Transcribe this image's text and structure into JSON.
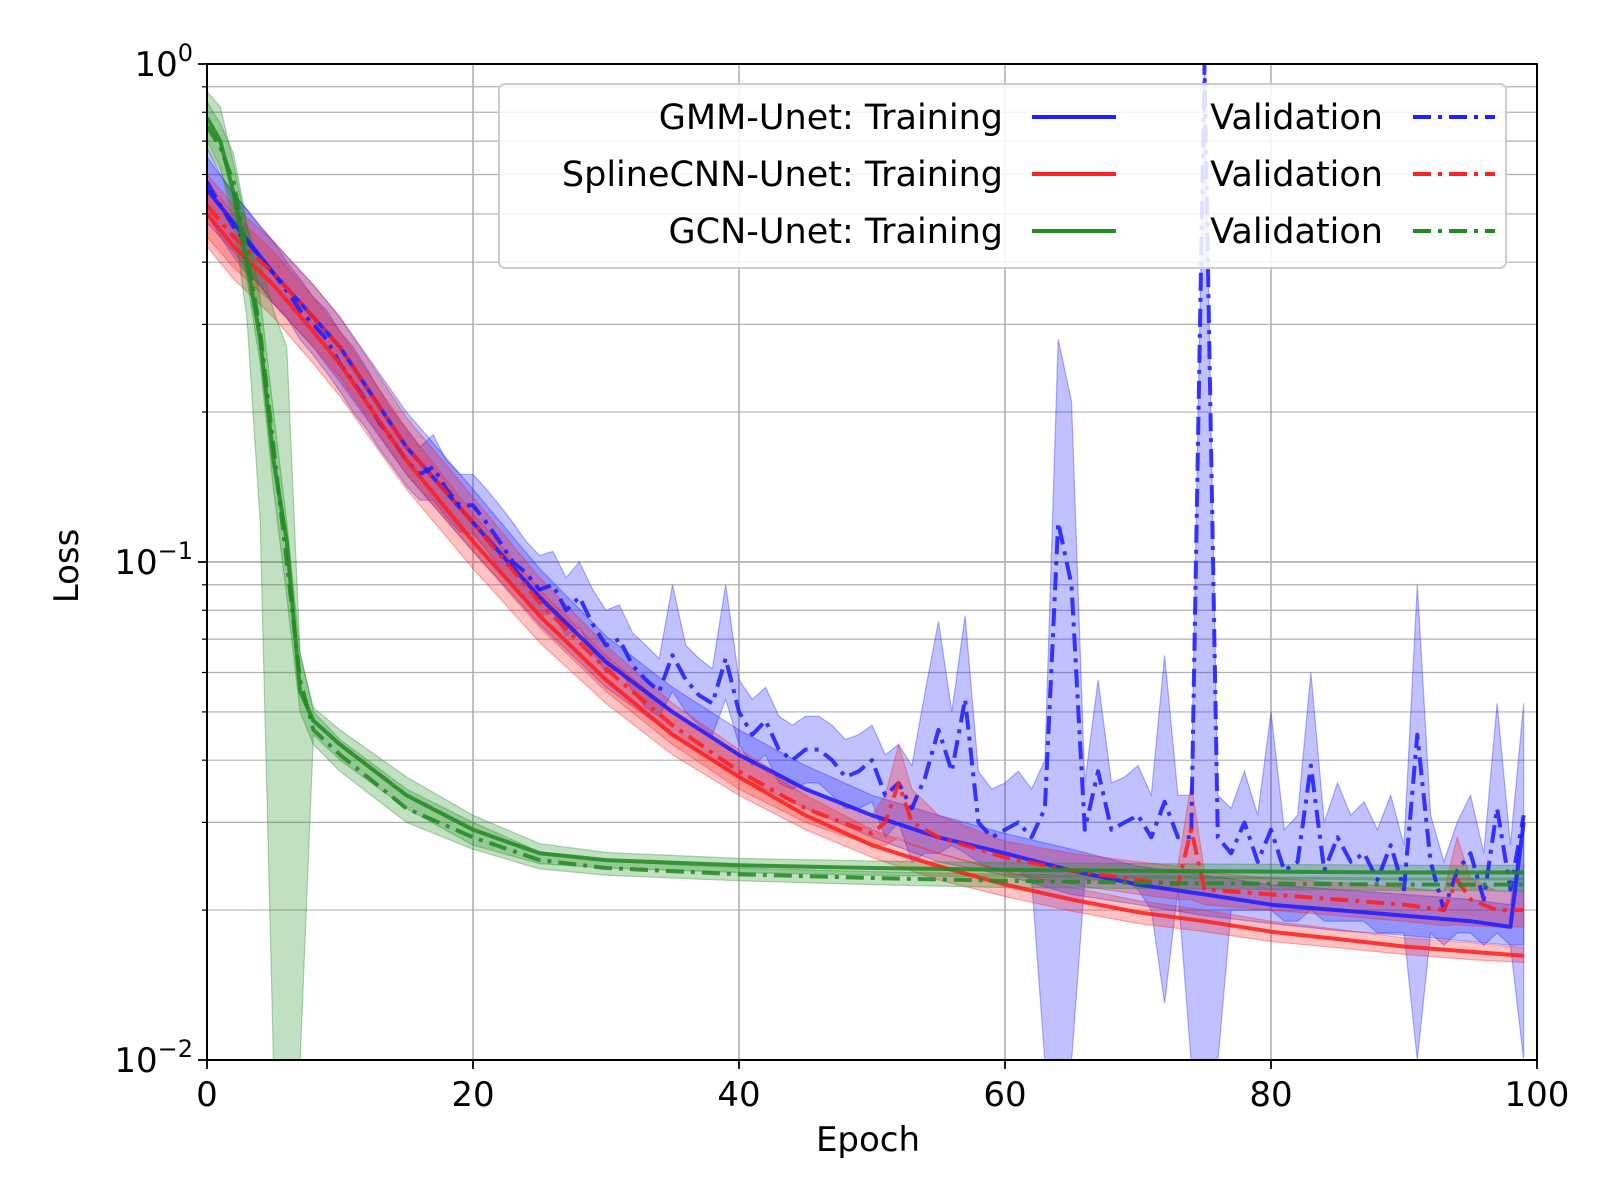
{
  "chart_data": {
    "type": "line",
    "xlabel": "Epoch",
    "ylabel": "Loss",
    "xlim": [
      0,
      100
    ],
    "ylim": [
      0.01,
      1
    ],
    "yscale": "log",
    "grid": true,
    "legend_placement": "top-right",
    "x_ticks": [
      {
        "value": 0,
        "label": "0"
      },
      {
        "value": 20,
        "label": "20"
      },
      {
        "value": 40,
        "label": "40"
      },
      {
        "value": 60,
        "label": "60"
      },
      {
        "value": 80,
        "label": "80"
      },
      {
        "value": 100,
        "label": "100"
      }
    ],
    "y_ticks": [
      {
        "value": 1,
        "base": "10",
        "exp": "0"
      },
      {
        "value": 0.1,
        "base": "10",
        "exp": "−1"
      },
      {
        "value": 0.01,
        "base": "10",
        "exp": "−2"
      }
    ],
    "legend": {
      "rows": [
        {
          "training_label": "GMM-Unet: Training",
          "validation_label": "Validation",
          "color": "#1f1fff"
        },
        {
          "training_label": "SplineCNN-Unet: Training",
          "validation_label": "Validation",
          "color": "#ff2020"
        },
        {
          "training_label": "GCN-Unet: Training",
          "validation_label": "Validation",
          "color": "#228b22"
        }
      ]
    },
    "series": [
      {
        "key": "gmm_train",
        "color": "#1f1fff",
        "style": "solid",
        "x": [
          0,
          2,
          5,
          8,
          10,
          15,
          20,
          25,
          30,
          35,
          40,
          45,
          50,
          55,
          60,
          65,
          70,
          75,
          80,
          85,
          90,
          95,
          98,
          99
        ],
        "y": [
          0.56,
          0.48,
          0.38,
          0.31,
          0.27,
          0.17,
          0.12,
          0.085,
          0.063,
          0.05,
          0.041,
          0.035,
          0.031,
          0.028,
          0.026,
          0.024,
          0.0225,
          0.0215,
          0.0205,
          0.02,
          0.0195,
          0.019,
          0.0185,
          0.03
        ],
        "band_lo": [
          0.48,
          0.42,
          0.33,
          0.27,
          0.23,
          0.15,
          0.105,
          0.075,
          0.056,
          0.045,
          0.037,
          0.032,
          0.028,
          0.025,
          0.0235,
          0.0215,
          0.0205,
          0.0195,
          0.0188,
          0.0182,
          0.0178,
          0.0173,
          0.017,
          0.017
        ],
        "band_hi": [
          0.65,
          0.55,
          0.44,
          0.36,
          0.31,
          0.2,
          0.14,
          0.097,
          0.071,
          0.056,
          0.046,
          0.039,
          0.034,
          0.031,
          0.0285,
          0.0265,
          0.0245,
          0.0235,
          0.0225,
          0.022,
          0.0215,
          0.021,
          0.0205,
          0.031
        ]
      },
      {
        "key": "gmm_val",
        "color": "#1f1fff",
        "style": "dashdot",
        "x": [
          0,
          1,
          2,
          3,
          4,
          5,
          6,
          7,
          8,
          9,
          10,
          11,
          12,
          13,
          14,
          15,
          16,
          17,
          18,
          19,
          20,
          21,
          22,
          23,
          24,
          25,
          26,
          27,
          28,
          29,
          30,
          31,
          32,
          33,
          34,
          35,
          36,
          37,
          38,
          39,
          40,
          41,
          42,
          43,
          44,
          45,
          46,
          47,
          48,
          49,
          50,
          51,
          52,
          53,
          54,
          55,
          56,
          57,
          58,
          59,
          60,
          61,
          62,
          63,
          64,
          65,
          66,
          67,
          68,
          69,
          70,
          71,
          72,
          73,
          74,
          75,
          76,
          77,
          78,
          79,
          80,
          81,
          82,
          83,
          84,
          85,
          86,
          87,
          88,
          89,
          90,
          91,
          92,
          93,
          94,
          95,
          96,
          97,
          98,
          99
        ],
        "y": [
          0.58,
          0.52,
          0.47,
          0.44,
          0.41,
          0.38,
          0.35,
          0.32,
          0.3,
          0.28,
          0.25,
          0.23,
          0.21,
          0.19,
          0.175,
          0.16,
          0.15,
          0.155,
          0.14,
          0.13,
          0.13,
          0.12,
          0.11,
          0.1,
          0.095,
          0.088,
          0.09,
          0.08,
          0.085,
          0.075,
          0.068,
          0.07,
          0.062,
          0.058,
          0.055,
          0.065,
          0.058,
          0.054,
          0.052,
          0.064,
          0.05,
          0.045,
          0.048,
          0.042,
          0.04,
          0.042,
          0.042,
          0.04,
          0.037,
          0.038,
          0.04,
          0.034,
          0.036,
          0.032,
          0.037,
          0.046,
          0.038,
          0.053,
          0.03,
          0.028,
          0.029,
          0.03,
          0.028,
          0.032,
          0.12,
          0.09,
          0.029,
          0.038,
          0.029,
          0.03,
          0.031,
          0.028,
          0.033,
          0.028,
          0.028,
          1.0,
          0.028,
          0.026,
          0.03,
          0.025,
          0.029,
          0.024,
          0.025,
          0.039,
          0.024,
          0.028,
          0.025,
          0.026,
          0.023,
          0.027,
          0.022,
          0.045,
          0.025,
          0.02,
          0.024,
          0.026,
          0.021,
          0.032,
          0.022,
          0.031
        ],
        "band_lo": [
          0.5,
          0.45,
          0.41,
          0.38,
          0.36,
          0.33,
          0.31,
          0.28,
          0.26,
          0.24,
          0.22,
          0.2,
          0.185,
          0.168,
          0.155,
          0.142,
          0.133,
          0.133,
          0.123,
          0.115,
          0.114,
          0.106,
          0.097,
          0.089,
          0.084,
          0.078,
          0.079,
          0.071,
          0.074,
          0.066,
          0.06,
          0.061,
          0.055,
          0.051,
          0.049,
          0.055,
          0.05,
          0.047,
          0.045,
          0.053,
          0.043,
          0.039,
          0.041,
          0.036,
          0.035,
          0.036,
          0.036,
          0.034,
          0.032,
          0.032,
          0.033,
          0.028,
          0.03,
          0.025,
          0.026,
          0.026,
          0.027,
          0.026,
          0.025,
          0.024,
          0.024,
          0.024,
          0.023,
          0.005,
          0.005,
          0.005,
          0.023,
          0.023,
          0.023,
          0.023,
          0.022,
          0.02,
          0.013,
          0.022,
          0.005,
          0.005,
          0.005,
          0.02,
          0.02,
          0.02,
          0.02,
          0.019,
          0.019,
          0.02,
          0.019,
          0.019,
          0.019,
          0.019,
          0.018,
          0.018,
          0.018,
          0.01,
          0.018,
          0.017,
          0.018,
          0.018,
          0.017,
          0.018,
          0.017,
          0.01
        ],
        "band_hi": [
          0.68,
          0.6,
          0.55,
          0.51,
          0.47,
          0.44,
          0.4,
          0.37,
          0.34,
          0.32,
          0.29,
          0.27,
          0.245,
          0.22,
          0.2,
          0.185,
          0.17,
          0.18,
          0.16,
          0.15,
          0.15,
          0.14,
          0.13,
          0.12,
          0.11,
          0.103,
          0.105,
          0.093,
          0.1,
          0.088,
          0.08,
          0.082,
          0.072,
          0.068,
          0.064,
          0.09,
          0.068,
          0.064,
          0.061,
          0.09,
          0.058,
          0.053,
          0.056,
          0.049,
          0.047,
          0.049,
          0.049,
          0.047,
          0.044,
          0.045,
          0.047,
          0.041,
          0.043,
          0.039,
          0.055,
          0.076,
          0.05,
          0.078,
          0.038,
          0.035,
          0.036,
          0.038,
          0.035,
          0.04,
          0.28,
          0.21,
          0.036,
          0.058,
          0.036,
          0.037,
          0.039,
          0.034,
          0.065,
          0.034,
          0.034,
          1.0,
          0.034,
          0.032,
          0.038,
          0.031,
          0.05,
          0.029,
          0.031,
          0.06,
          0.03,
          0.036,
          0.031,
          0.033,
          0.029,
          0.034,
          0.027,
          0.09,
          0.031,
          0.025,
          0.03,
          0.034,
          0.026,
          0.052,
          0.027,
          0.052
        ]
      },
      {
        "key": "spline_train",
        "color": "#ff2020",
        "style": "solid",
        "x": [
          0,
          2,
          5,
          8,
          10,
          15,
          20,
          25,
          30,
          35,
          40,
          45,
          50,
          55,
          60,
          65,
          70,
          75,
          80,
          85,
          90,
          95,
          99
        ],
        "y": [
          0.5,
          0.43,
          0.36,
          0.29,
          0.25,
          0.16,
          0.11,
          0.078,
          0.058,
          0.045,
          0.037,
          0.031,
          0.027,
          0.0245,
          0.0225,
          0.021,
          0.0198,
          0.019,
          0.0181,
          0.0175,
          0.0169,
          0.0165,
          0.0162
        ],
        "band_lo": [
          0.43,
          0.37,
          0.31,
          0.25,
          0.215,
          0.14,
          0.097,
          0.069,
          0.052,
          0.041,
          0.034,
          0.029,
          0.0255,
          0.023,
          0.0213,
          0.0199,
          0.0188,
          0.0181,
          0.0173,
          0.0168,
          0.0163,
          0.0159,
          0.0157
        ],
        "band_hi": [
          0.58,
          0.5,
          0.42,
          0.34,
          0.29,
          0.185,
          0.125,
          0.088,
          0.065,
          0.05,
          0.041,
          0.034,
          0.029,
          0.026,
          0.024,
          0.0222,
          0.0209,
          0.02,
          0.019,
          0.0183,
          0.0176,
          0.0172,
          0.0168
        ]
      },
      {
        "key": "spline_val",
        "color": "#ff2020",
        "style": "dashdot",
        "x": [
          0,
          2,
          5,
          8,
          10,
          15,
          20,
          25,
          30,
          35,
          40,
          45,
          50,
          51,
          52,
          53,
          55,
          60,
          65,
          70,
          73,
          74,
          75,
          80,
          85,
          90,
          93,
          94,
          95,
          97,
          99
        ],
        "y": [
          0.52,
          0.45,
          0.38,
          0.31,
          0.27,
          0.17,
          0.12,
          0.083,
          0.061,
          0.047,
          0.038,
          0.032,
          0.0285,
          0.03,
          0.036,
          0.03,
          0.028,
          0.0255,
          0.024,
          0.023,
          0.0225,
          0.029,
          0.022,
          0.0215,
          0.021,
          0.0205,
          0.02,
          0.023,
          0.021,
          0.02,
          0.02
        ],
        "band_lo": [
          0.45,
          0.39,
          0.33,
          0.27,
          0.235,
          0.15,
          0.105,
          0.074,
          0.055,
          0.043,
          0.035,
          0.03,
          0.027,
          0.027,
          0.028,
          0.027,
          0.026,
          0.0238,
          0.0225,
          0.0215,
          0.021,
          0.021,
          0.0205,
          0.02,
          0.0195,
          0.019,
          0.0186,
          0.0187,
          0.0186,
          0.0185,
          0.0185
        ],
        "band_hi": [
          0.6,
          0.52,
          0.44,
          0.36,
          0.31,
          0.195,
          0.135,
          0.093,
          0.068,
          0.052,
          0.042,
          0.035,
          0.031,
          0.034,
          0.043,
          0.035,
          0.031,
          0.0275,
          0.026,
          0.025,
          0.0245,
          0.036,
          0.0238,
          0.0232,
          0.0227,
          0.0222,
          0.0218,
          0.028,
          0.0232,
          0.0218,
          0.0218
        ]
      },
      {
        "key": "gcn_train",
        "color": "#228b22",
        "style": "solid",
        "x": [
          0,
          1,
          2,
          3,
          4,
          5,
          6,
          7,
          8,
          10,
          15,
          20,
          25,
          30,
          40,
          50,
          60,
          70,
          80,
          90,
          99
        ],
        "y": [
          0.78,
          0.7,
          0.55,
          0.4,
          0.28,
          0.16,
          0.11,
          0.055,
          0.048,
          0.043,
          0.034,
          0.029,
          0.026,
          0.0252,
          0.0246,
          0.0243,
          0.0241,
          0.024,
          0.0239,
          0.0238,
          0.0238
        ],
        "band_lo": [
          0.7,
          0.62,
          0.48,
          0.31,
          0.12,
          0.005,
          0.005,
          0.005,
          0.045,
          0.04,
          0.032,
          0.027,
          0.0248,
          0.0243,
          0.0238,
          0.0235,
          0.0233,
          0.0232,
          0.0231,
          0.023,
          0.023
        ],
        "band_hi": [
          0.88,
          0.82,
          0.63,
          0.47,
          0.4,
          0.32,
          0.27,
          0.065,
          0.051,
          0.046,
          0.037,
          0.031,
          0.0272,
          0.0261,
          0.0254,
          0.0251,
          0.0249,
          0.0248,
          0.0247,
          0.0246,
          0.0246
        ]
      },
      {
        "key": "gcn_val",
        "color": "#228b22",
        "style": "dashdot",
        "x": [
          0,
          1,
          2,
          3,
          4,
          5,
          6,
          7,
          8,
          10,
          15,
          20,
          25,
          30,
          40,
          50,
          60,
          70,
          80,
          90,
          99
        ],
        "y": [
          0.75,
          0.68,
          0.58,
          0.42,
          0.29,
          0.17,
          0.1,
          0.058,
          0.046,
          0.041,
          0.032,
          0.028,
          0.0252,
          0.0243,
          0.0236,
          0.0232,
          0.0229,
          0.0227,
          0.0226,
          0.0225,
          0.0225
        ],
        "band_lo": [
          0.68,
          0.61,
          0.52,
          0.37,
          0.25,
          0.14,
          0.085,
          0.05,
          0.043,
          0.038,
          0.03,
          0.0265,
          0.0242,
          0.0235,
          0.0229,
          0.0225,
          0.0222,
          0.0221,
          0.022,
          0.0219,
          0.0219
        ],
        "band_hi": [
          0.84,
          0.76,
          0.66,
          0.48,
          0.34,
          0.2,
          0.12,
          0.066,
          0.05,
          0.044,
          0.035,
          0.03,
          0.0262,
          0.0251,
          0.0243,
          0.0239,
          0.0236,
          0.0234,
          0.0233,
          0.0232,
          0.0232
        ]
      }
    ]
  }
}
